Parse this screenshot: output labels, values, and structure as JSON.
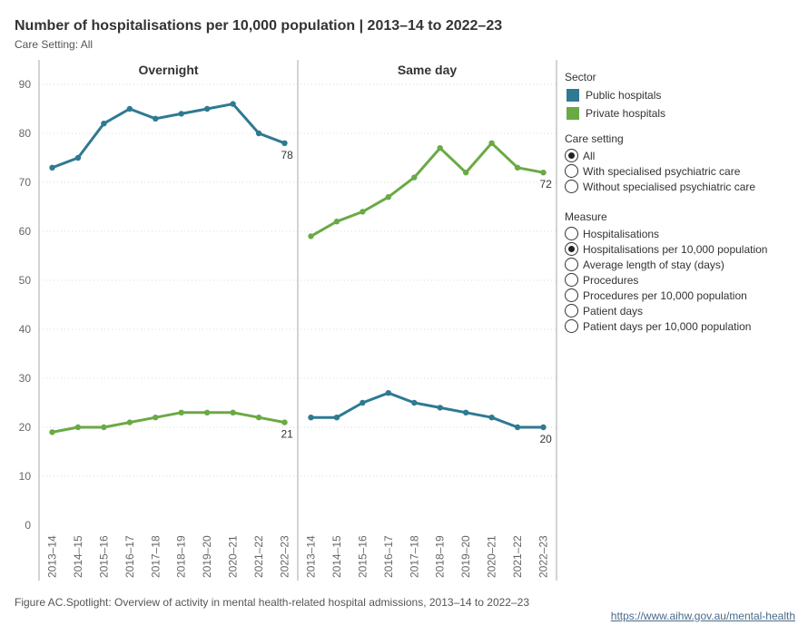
{
  "title": "Number of hospitalisations per 10,000 population | 2013–14 to 2022–23",
  "subtitle": "Care Setting: All",
  "colors": {
    "public": "#2e7a92",
    "private": "#6aaa45",
    "grid": "#d9d9d9",
    "axis": "#aaaaaa"
  },
  "legend": {
    "sector_title": "Sector",
    "sector_items": [
      {
        "label": "Public hospitals",
        "color": "#2e7a92"
      },
      {
        "label": "Private hospitals",
        "color": "#6aaa45"
      }
    ],
    "care_title": "Care setting",
    "care_options": [
      {
        "label": "All",
        "checked": true
      },
      {
        "label": "With specialised psychiatric care",
        "checked": false
      },
      {
        "label": "Without specialised psychiatric care",
        "checked": false
      }
    ],
    "measure_title": "Measure",
    "measure_options": [
      {
        "label": "Hospitalisations",
        "checked": false
      },
      {
        "label": "Hospitalisations per 10,000 population",
        "checked": true
      },
      {
        "label": "Average length of stay (days)",
        "checked": false
      },
      {
        "label": "Procedures",
        "checked": false
      },
      {
        "label": "Procedures per 10,000 population",
        "checked": false
      },
      {
        "label": "Patient days",
        "checked": false
      },
      {
        "label": "Patient days per 10,000 population",
        "checked": false
      }
    ]
  },
  "chart_data": {
    "type": "line",
    "title": "Number of hospitalisations per 10,000 population | 2013–14 to 2022–23",
    "ylim": [
      0,
      90
    ],
    "yticks": [
      0,
      10,
      20,
      30,
      40,
      50,
      60,
      70,
      80,
      90
    ],
    "categories": [
      "2013–14",
      "2014–15",
      "2015–16",
      "2016–17",
      "2017–18",
      "2018–19",
      "2019–20",
      "2020–21",
      "2021–22",
      "2022–23"
    ],
    "panels": [
      {
        "name": "Overnight",
        "series": [
          {
            "name": "Public hospitals",
            "values": [
              73,
              75,
              82,
              85,
              83,
              84,
              85,
              86,
              80,
              78
            ],
            "end_label": "78"
          },
          {
            "name": "Private hospitals",
            "values": [
              19,
              20,
              20,
              21,
              22,
              23,
              23,
              23,
              22,
              21
            ],
            "end_label": "21"
          }
        ]
      },
      {
        "name": "Same day",
        "series": [
          {
            "name": "Public hospitals",
            "values": [
              22,
              22,
              25,
              27,
              25,
              24,
              23,
              22,
              20,
              20
            ],
            "end_label": "20"
          },
          {
            "name": "Private hospitals",
            "values": [
              59,
              62,
              64,
              67,
              71,
              77,
              72,
              78,
              73,
              72
            ],
            "end_label": "72"
          }
        ]
      }
    ]
  },
  "footer": {
    "caption": "Figure AC.Spotlight: Overview of activity in mental health-related hospital admissions, 2013–14 to 2022–23",
    "link": "https://www.aihw.gov.au/mental-health"
  }
}
